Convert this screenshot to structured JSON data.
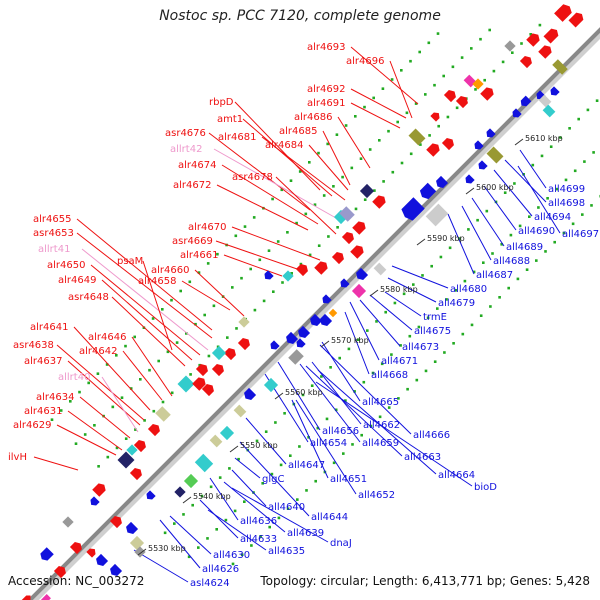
{
  "title": "Nostoc sp. PCC 7120, complete genome",
  "footer": {
    "accession": "Accession: NC_003272",
    "summary": "Topology: circular; Length: 6,413,771 bp; Genes: 5,428"
  },
  "colors": {
    "forward": "#ee1111",
    "reverse": "#1111dd",
    "rna": "#ee99cc",
    "backbone": "#888888",
    "tick_dot": "#22aa22"
  },
  "scale": {
    "unit": "kbp",
    "ticks": [
      "5530 kbp",
      "5540 kbp",
      "5550 kbp",
      "5560 kbp",
      "5570 kbp",
      "5580 kbp",
      "5590 kbp",
      "5600 kbp",
      "5610 kbp"
    ]
  },
  "forward_labels": [
    "alr4693",
    "alr4696",
    "alr4692",
    "alr4691",
    "alr4686",
    "rbpD",
    "amt1",
    "alr4681",
    "alr4685",
    "asr4676",
    "alr4684",
    "allrt42",
    "alr4674",
    "asr4678",
    "alr4672",
    "alr4655",
    "alr4670",
    "asr4653",
    "asr4669",
    "allrt41",
    "alr4661",
    "psaM",
    "alr4650",
    "alr4660",
    "alr4649",
    "alr4658",
    "asr4648",
    "alr4641",
    "alr4646",
    "asr4638",
    "alr4642",
    "alr4637",
    "allrt40",
    "alr4634",
    "alr4631",
    "alr4629",
    "ilvH"
  ],
  "reverse_labels": [
    "all4699",
    "all4698",
    "all4694",
    "all4697",
    "all4690",
    "all4689",
    "all4688",
    "all4687",
    "all4680",
    "all4679",
    "trmE",
    "all4675",
    "all4673",
    "all4671",
    "all4668",
    "all4665",
    "all4656",
    "all4662",
    "all4654",
    "all4659",
    "all4666",
    "all4663",
    "all4647",
    "all4651",
    "all4664",
    "glgC",
    "all4652",
    "bioD",
    "all4640",
    "all4644",
    "all4636",
    "all4639",
    "dnaJ",
    "all4633",
    "all4635",
    "all4630",
    "all4626",
    "asl4624"
  ]
}
